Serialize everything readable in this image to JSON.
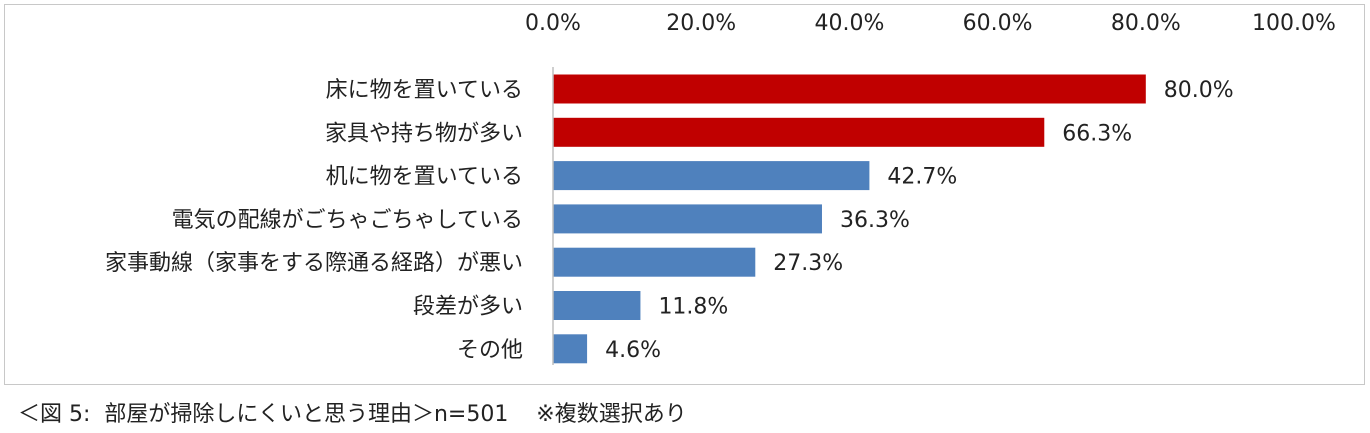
{
  "chart_data": {
    "type": "bar",
    "orientation": "horizontal",
    "categories": [
      "床に物を置いている",
      "家具や持ち物が多い",
      "机に物を置いている",
      "電気の配線がごちゃごちゃしている",
      "家事動線（家事をする際通る経路）が悪い",
      "段差が多い",
      "その他"
    ],
    "values": [
      80.0,
      66.3,
      42.7,
      36.3,
      27.3,
      11.8,
      4.6
    ],
    "value_labels": [
      "80.0%",
      "66.3%",
      "42.7%",
      "36.3%",
      "27.3%",
      "11.8%",
      "4.6%"
    ],
    "xlim": [
      0,
      100
    ],
    "x_ticks": [
      "0.0%",
      "20.0%",
      "40.0%",
      "60.0%",
      "80.0%",
      "100.0%"
    ],
    "x_tick_values": [
      0,
      20,
      40,
      60,
      80,
      100
    ],
    "x_axis_position": "top",
    "grid": false,
    "colors": {
      "highlight": "#c00000",
      "default": "#4f81bd"
    },
    "highlight_count": 2
  },
  "caption": "＜図 5:  部屋が掃除しにくいと思う理由＞n=501    ※複数選択あり"
}
